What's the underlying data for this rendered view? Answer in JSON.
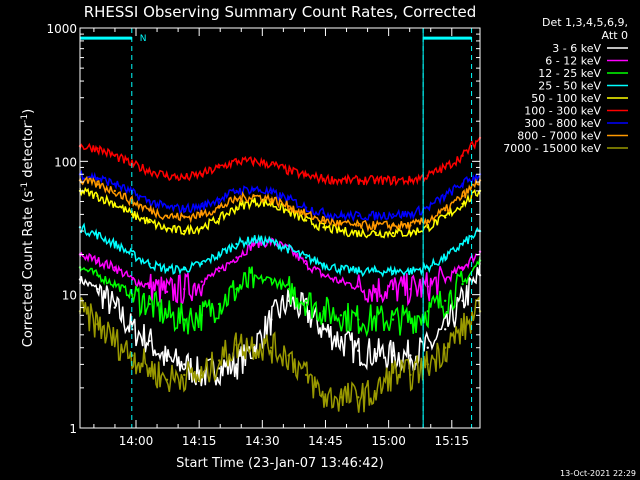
{
  "chart_data": {
    "type": "line",
    "title": "RHESSI Observing Summary Count Rates, Corrected",
    "xlabel": "Start Time (23-Jan-07 13:46:42)",
    "ylabel": "Corrected Count Rate (s⁻¹ detector⁻¹)",
    "ylabel_parts": {
      "main": "Corrected Count Rate (s",
      "sup1": "-1",
      "mid": " detector",
      "sup2": "-1",
      "end": ")"
    },
    "y_scale": "log",
    "ylim": [
      1,
      1000
    ],
    "xlim_minutes": [
      0,
      95
    ],
    "x_tick_minutes": [
      13.3,
      28.3,
      43.3,
      58.3,
      73.3,
      88.3
    ],
    "x_tick_labels": [
      "14:00",
      "14:15",
      "14:30",
      "14:45",
      "15:00",
      "15:15"
    ],
    "y_tick_values": [
      1,
      10,
      100,
      1000
    ],
    "y_tick_labels": [
      "1",
      "10",
      "100",
      "1000"
    ],
    "legend_header": [
      "Det 1,3,4,5,6,9,",
      "Att 0"
    ],
    "legend_position": "right",
    "footer_timestamp": "13-Oct-2021 22:29",
    "night_marker_label": "N",
    "night_intervals_minutes": [
      [
        0,
        12.3
      ],
      [
        81.5,
        93
      ]
    ],
    "night_boundaries_minutes": [
      12.3,
      81.5,
      93
    ],
    "night_level": 840,
    "series": [
      {
        "name": "3 - 6 keV",
        "color": "#ffffff",
        "values": [
          13,
          11,
          8,
          5.5,
          4.5,
          3.2,
          3.0,
          2.5,
          2.8,
          3.0,
          4.0,
          6.5,
          9.0,
          7.5,
          5.5,
          4.5,
          3.8,
          3.6,
          3.5,
          3.5,
          4.0,
          5.5,
          9.0,
          14
        ]
      },
      {
        "name": "6 - 12 keV",
        "color": "#ff00ff",
        "values": [
          20,
          18,
          16,
          13,
          11.5,
          10.5,
          11,
          12.5,
          15,
          19,
          24,
          25,
          22,
          17,
          14,
          12.5,
          11.5,
          11,
          11,
          11,
          11.5,
          13,
          16,
          21
        ]
      },
      {
        "name": "12 - 25 keV",
        "color": "#00ff00",
        "values": [
          16,
          14,
          12,
          10,
          8.5,
          7,
          6.5,
          7,
          8.5,
          11,
          13,
          13,
          11,
          9,
          7.5,
          7,
          6.5,
          6.5,
          6.5,
          6.5,
          7.5,
          9,
          12,
          18
        ]
      },
      {
        "name": "25 - 50 keV",
        "color": "#00ffff",
        "values": [
          32,
          28,
          24,
          20,
          17,
          15.5,
          15.5,
          17,
          20,
          24,
          26,
          25,
          22,
          19,
          17,
          15.5,
          15,
          15,
          15,
          15,
          16,
          19,
          24,
          30
        ]
      },
      {
        "name": "50 - 100 keV",
        "color": "#ffff00",
        "values": [
          60,
          55,
          48,
          40,
          35,
          31,
          30,
          32,
          37,
          45,
          50,
          48,
          42,
          36,
          32,
          30,
          29,
          29,
          29,
          29,
          32,
          38,
          48,
          60
        ]
      },
      {
        "name": "100 - 300 keV",
        "color": "#ff0000",
        "values": [
          130,
          125,
          110,
          95,
          85,
          78,
          75,
          80,
          90,
          100,
          100,
          95,
          85,
          78,
          74,
          72,
          72,
          72,
          72,
          72,
          78,
          90,
          110,
          150
        ]
      },
      {
        "name": "300 - 800 keV",
        "color": "#0000ff",
        "values": [
          80,
          75,
          68,
          58,
          50,
          45,
          44,
          46,
          52,
          60,
          62,
          58,
          52,
          45,
          41,
          39,
          39,
          39,
          40,
          40,
          45,
          55,
          68,
          80
        ]
      },
      {
        "name": "800 - 7000 keV",
        "color": "#ff9900",
        "values": [
          72,
          67,
          60,
          50,
          43,
          39,
          38,
          40,
          45,
          52,
          55,
          52,
          46,
          40,
          36,
          34,
          33,
          33,
          33,
          33,
          36,
          43,
          55,
          72
        ]
      },
      {
        "name": "7000 - 15000 keV",
        "color": "#999900",
        "values": [
          7.5,
          6,
          4.5,
          3.5,
          2.8,
          2.3,
          2.5,
          2.4,
          3.2,
          4.2,
          4.2,
          4.0,
          3.5,
          2.5,
          1.7,
          1.7,
          1.7,
          1.8,
          2.6,
          2.5,
          3.0,
          4.0,
          5.5,
          7.5
        ]
      }
    ]
  }
}
